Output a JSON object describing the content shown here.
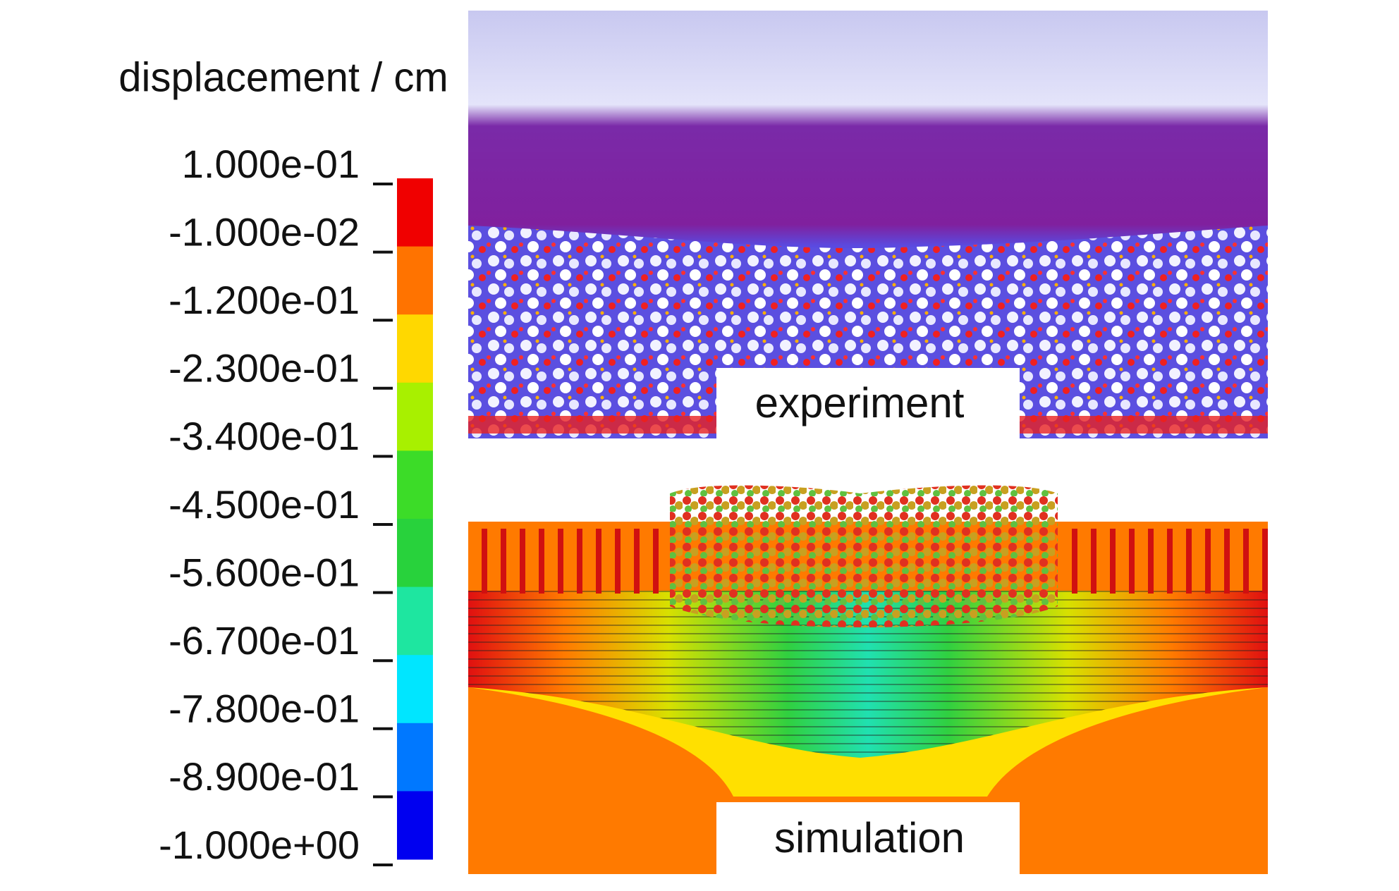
{
  "colorbar": {
    "title": "displacement / cm",
    "ticks": [
      "1.000e-01",
      "-1.000e-02",
      "-1.200e-01",
      "-2.300e-01",
      "-3.400e-01",
      "-4.500e-01",
      "-5.600e-01",
      "-6.700e-01",
      "-7.800e-01",
      "-8.900e-01",
      "-1.000e+00"
    ],
    "colors": [
      "#f00000",
      "#ff7300",
      "#ffd800",
      "#a8f000",
      "#3cdc28",
      "#28d23c",
      "#1ee6a0",
      "#00e6ff",
      "#0078ff",
      "#0000f0"
    ]
  },
  "panels": [
    {
      "label": "experiment"
    },
    {
      "label": "simulation"
    }
  ]
}
